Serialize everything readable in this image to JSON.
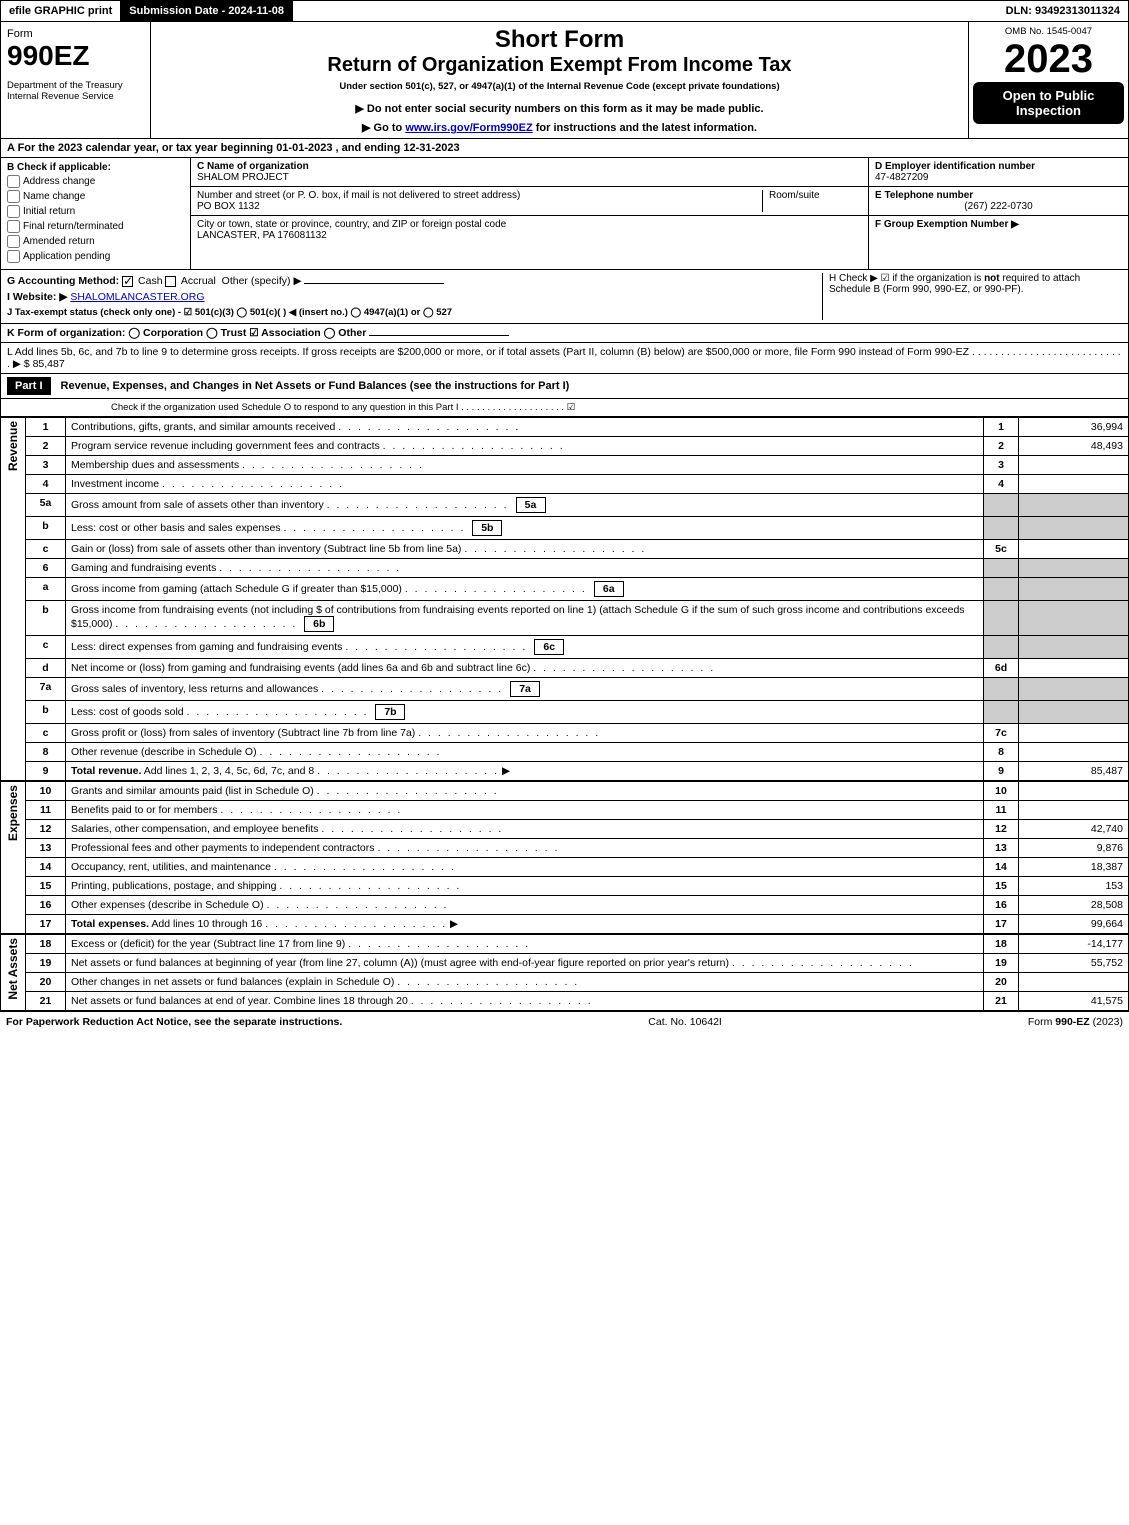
{
  "topbar": {
    "efile": "efile GRAPHIC print",
    "submission": "Submission Date - 2024-11-08",
    "dln": "DLN: 93492313011324"
  },
  "header": {
    "form_word": "Form",
    "form_number": "990EZ",
    "dept": "Department of the Treasury",
    "irs": "Internal Revenue Service",
    "short_form": "Short Form",
    "return_title": "Return of Organization Exempt From Income Tax",
    "subtitle": "Under section 501(c), 527, or 4947(a)(1) of the Internal Revenue Code (except private foundations)",
    "note1": "▶ Do not enter social security numbers on this form as it may be made public.",
    "note2_pre": "▶ Go to ",
    "note2_link": "www.irs.gov/Form990EZ",
    "note2_post": " for instructions and the latest information.",
    "omb": "OMB No. 1545-0047",
    "year": "2023",
    "open": "Open to Public Inspection"
  },
  "sectionA": "A  For the 2023 calendar year, or tax year beginning 01-01-2023 , and ending 12-31-2023",
  "sectionB": {
    "label": "B  Check if applicable:",
    "opts": [
      "Address change",
      "Name change",
      "Initial return",
      "Final return/terminated",
      "Amended return",
      "Application pending"
    ]
  },
  "sectionC": {
    "label": "C Name of organization",
    "name": "SHALOM PROJECT",
    "street_label": "Number and street (or P. O. box, if mail is not delivered to street address)",
    "room_label": "Room/suite",
    "street": "PO BOX 1132",
    "city_label": "City or town, state or province, country, and ZIP or foreign postal code",
    "city": "LANCASTER, PA  176081132"
  },
  "sectionD": {
    "label": "D Employer identification number",
    "ein": "47-4827209"
  },
  "sectionE": {
    "label": "E Telephone number",
    "phone": "(267) 222-0730"
  },
  "sectionF": {
    "label": "F Group Exemption Number  ▶"
  },
  "sectionG": {
    "label": "G Accounting Method:",
    "cash": "Cash",
    "accrual": "Accrual",
    "other": "Other (specify) ▶"
  },
  "sectionH": {
    "text": "H  Check ▶ ☑ if the organization is ",
    "bold": "not",
    "text2": " required to attach Schedule B (Form 990, 990-EZ, or 990-PF)."
  },
  "sectionI": {
    "label": "I Website: ▶",
    "site": "SHALOMLANCASTER.ORG"
  },
  "sectionJ": {
    "text": "J Tax-exempt status (check only one) - ☑ 501(c)(3) ◯ 501(c)(  ) ◀ (insert no.) ◯ 4947(a)(1) or ◯ 527"
  },
  "sectionK": "K Form of organization:  ◯ Corporation  ◯ Trust  ☑ Association  ◯ Other",
  "sectionL": {
    "text": "L Add lines 5b, 6c, and 7b to line 9 to determine gross receipts. If gross receipts are $200,000 or more, or if total assets (Part II, column (B) below) are $500,000 or more, file Form 990 instead of Form 990-EZ  .  .  .  .  .  .  .  .  .  .  .  .  .  .  .  .  .  .  .  .  .  .  .  .  .  .  .  ▶ $ 85,487"
  },
  "part1": {
    "num": "Part I",
    "title": "Revenue, Expenses, and Changes in Net Assets or Fund Balances (see the instructions for Part I)",
    "check_line": "Check if the organization used Schedule O to respond to any question in this Part I .  .  .  .  .  .  .  .  .  .  .  .  .  .  .  .  .  .  .  .  ☑"
  },
  "side_labels": {
    "revenue": "Revenue",
    "expenses": "Expenses",
    "netassets": "Net Assets"
  },
  "lines": [
    {
      "n": "1",
      "label": "Contributions, gifts, grants, and similar amounts received",
      "ln": "1",
      "amt": "36,994"
    },
    {
      "n": "2",
      "label": "Program service revenue including government fees and contracts",
      "ln": "2",
      "amt": "48,493"
    },
    {
      "n": "3",
      "label": "Membership dues and assessments",
      "ln": "3",
      "amt": ""
    },
    {
      "n": "4",
      "label": "Investment income",
      "ln": "4",
      "amt": ""
    },
    {
      "n": "5a",
      "label": "Gross amount from sale of assets other than inventory",
      "sub": "5a",
      "grayed": true
    },
    {
      "n": "b",
      "label": "Less: cost or other basis and sales expenses",
      "sub": "5b",
      "grayed": true
    },
    {
      "n": "c",
      "label": "Gain or (loss) from sale of assets other than inventory (Subtract line 5b from line 5a)",
      "ln": "5c",
      "amt": ""
    },
    {
      "n": "6",
      "label": "Gaming and fundraising events",
      "grayed_full": true
    },
    {
      "n": "a",
      "label": "Gross income from gaming (attach Schedule G if greater than $15,000)",
      "sub": "6a",
      "grayed": true
    },
    {
      "n": "b",
      "label": "Gross income from fundraising events (not including $                    of contributions from fundraising events reported on line 1) (attach Schedule G if the sum of such gross income and contributions exceeds $15,000)",
      "sub": "6b",
      "grayed": true
    },
    {
      "n": "c",
      "label": "Less: direct expenses from gaming and fundraising events",
      "sub": "6c",
      "grayed": true
    },
    {
      "n": "d",
      "label": "Net income or (loss) from gaming and fundraising events (add lines 6a and 6b and subtract line 6c)",
      "ln": "6d",
      "amt": ""
    },
    {
      "n": "7a",
      "label": "Gross sales of inventory, less returns and allowances",
      "sub": "7a",
      "grayed": true
    },
    {
      "n": "b",
      "label": "Less: cost of goods sold",
      "sub": "7b",
      "grayed": true
    },
    {
      "n": "c",
      "label": "Gross profit or (loss) from sales of inventory (Subtract line 7b from line 7a)",
      "ln": "7c",
      "amt": ""
    },
    {
      "n": "8",
      "label": "Other revenue (describe in Schedule O)",
      "ln": "8",
      "amt": ""
    },
    {
      "n": "9",
      "label_bold": "Total revenue.",
      "label": " Add lines 1, 2, 3, 4, 5c, 6d, 7c, and 8",
      "arrow": true,
      "ln": "9",
      "amt": "85,487"
    }
  ],
  "expense_lines": [
    {
      "n": "10",
      "label": "Grants and similar amounts paid (list in Schedule O)",
      "ln": "10",
      "amt": ""
    },
    {
      "n": "11",
      "label": "Benefits paid to or for members",
      "ln": "11",
      "amt": ""
    },
    {
      "n": "12",
      "label": "Salaries, other compensation, and employee benefits",
      "ln": "12",
      "amt": "42,740"
    },
    {
      "n": "13",
      "label": "Professional fees and other payments to independent contractors",
      "ln": "13",
      "amt": "9,876"
    },
    {
      "n": "14",
      "label": "Occupancy, rent, utilities, and maintenance",
      "ln": "14",
      "amt": "18,387"
    },
    {
      "n": "15",
      "label": "Printing, publications, postage, and shipping",
      "ln": "15",
      "amt": "153"
    },
    {
      "n": "16",
      "label": "Other expenses (describe in Schedule O)",
      "ln": "16",
      "amt": "28,508"
    },
    {
      "n": "17",
      "label_bold": "Total expenses.",
      "label": " Add lines 10 through 16",
      "arrow": true,
      "ln": "17",
      "amt": "99,664"
    }
  ],
  "asset_lines": [
    {
      "n": "18",
      "label": "Excess or (deficit) for the year (Subtract line 17 from line 9)",
      "ln": "18",
      "amt": "-14,177"
    },
    {
      "n": "19",
      "label": "Net assets or fund balances at beginning of year (from line 27, column (A)) (must agree with end-of-year figure reported on prior year's return)",
      "ln": "19",
      "amt": "55,752"
    },
    {
      "n": "20",
      "label": "Other changes in net assets or fund balances (explain in Schedule O)",
      "ln": "20",
      "amt": ""
    },
    {
      "n": "21",
      "label": "Net assets or fund balances at end of year. Combine lines 18 through 20",
      "ln": "21",
      "amt": "41,575"
    }
  ],
  "footer": {
    "left": "For Paperwork Reduction Act Notice, see the separate instructions.",
    "mid": "Cat. No. 10642I",
    "right_pre": "Form ",
    "right_bold": "990-EZ",
    "right_post": " (2023)"
  }
}
